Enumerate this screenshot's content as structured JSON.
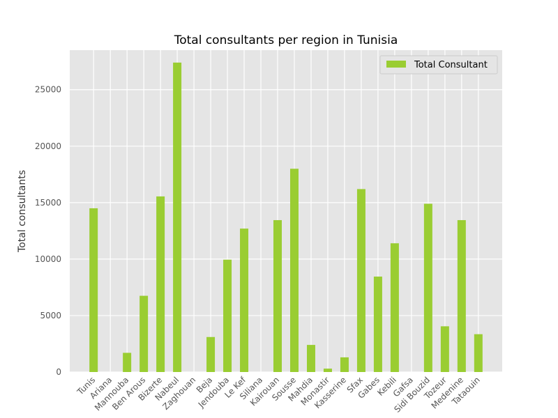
{
  "chart_data": {
    "type": "bar",
    "title": "Total consultants per region in Tunisia",
    "xlabel": "",
    "ylabel": "Total consultants",
    "categories": [
      "Tunis",
      "Ariana",
      "Mannouba",
      "Ben Arous",
      "Bizerte",
      "Nabeul",
      "Zaghouan",
      "Beja",
      "Jendouba",
      "Le Kef",
      "Siliana",
      "Kairouan",
      "Sousse",
      "Mahdia",
      "Monastir",
      "Kasserine",
      "Sfax",
      "Gabes",
      "Kebili",
      "Gafsa",
      "Sidi Bouzid",
      "Tozeur",
      "Medenine",
      "Tataouin"
    ],
    "series": [
      {
        "name": "Total Consultant",
        "values": [
          14500,
          0,
          1700,
          6750,
          15550,
          27400,
          0,
          3100,
          9950,
          12700,
          0,
          13450,
          18000,
          2400,
          300,
          1300,
          16200,
          8450,
          11400,
          0,
          14900,
          4050,
          13450,
          3350
        ]
      }
    ],
    "ylim": [
      0,
      28500
    ],
    "yticks": [
      0,
      5000,
      10000,
      15000,
      20000,
      25000
    ],
    "grid": true,
    "legend_position": "top-right",
    "colors": {
      "bar": "#9acd32",
      "plot_background": "#e5e5e5",
      "grid": "#ffffff"
    }
  }
}
